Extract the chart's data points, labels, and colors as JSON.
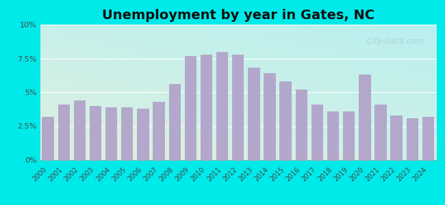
{
  "title": "Unemployment by year in Gates, NC",
  "years": [
    2000,
    2001,
    2002,
    2003,
    2004,
    2005,
    2006,
    2007,
    2008,
    2009,
    2010,
    2011,
    2012,
    2013,
    2014,
    2015,
    2016,
    2017,
    2018,
    2019,
    2020,
    2021,
    2022,
    2023,
    2024
  ],
  "values": [
    3.2,
    4.1,
    4.4,
    4.0,
    3.9,
    3.9,
    3.8,
    4.3,
    5.6,
    7.7,
    7.8,
    8.0,
    7.8,
    6.8,
    6.4,
    5.8,
    5.2,
    4.1,
    3.6,
    3.6,
    6.3,
    4.1,
    3.3,
    3.1,
    3.2
  ],
  "bar_color": "#b3a8cc",
  "background_outer": "#00eaea",
  "background_inner_topleft": "#dff0e0",
  "background_inner_bottomright": "#b8f0f0",
  "grid_color": "#ccddcc",
  "ylim": [
    0,
    10
  ],
  "yticks": [
    0,
    2.5,
    5.0,
    7.5,
    10.0
  ],
  "ytick_labels": [
    "0%",
    "2.5%",
    "5%",
    "7.5%",
    "10%"
  ],
  "title_fontsize": 14,
  "tick_fontsize": 7,
  "ytick_fontsize": 8,
  "watermark": "City-Data.com",
  "watermark_color": "#aacccc"
}
